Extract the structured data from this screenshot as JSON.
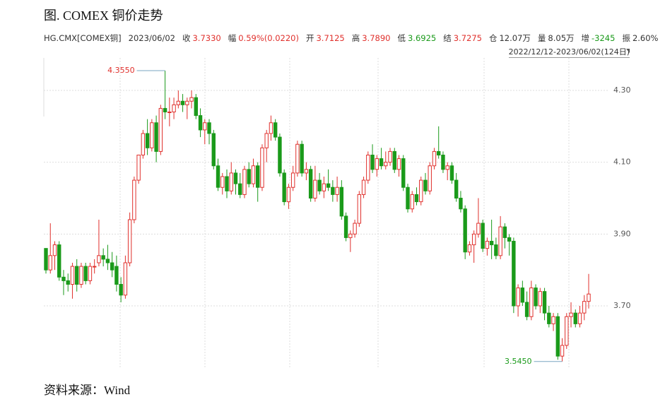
{
  "title": "图. COMEX 铜价走势",
  "source": "资料来源：Wind",
  "chart_data": {
    "type": "candlestick",
    "header": {
      "symbol": "HG.CMX[COMEX铜]",
      "date": "2023/06/02",
      "quote": [
        {
          "label": "收",
          "value": "3.7330",
          "color": "#e0302c"
        },
        {
          "label": "幅",
          "value": "0.59%(0.0220)",
          "color": "#e0302c"
        },
        {
          "label": "开",
          "value": "3.7125",
          "color": "#e0302c"
        },
        {
          "label": "高",
          "value": "3.7890",
          "color": "#e0302c"
        },
        {
          "label": "低",
          "value": "3.6925",
          "color": "#1a9a1a"
        },
        {
          "label": "结",
          "value": "3.7275",
          "color": "#e0302c"
        },
        {
          "label": "仓",
          "value": "12.07万",
          "color": "#333333"
        },
        {
          "label": "量",
          "value": "8.05万",
          "color": "#333333"
        },
        {
          "label": "增",
          "value": "-3245",
          "color": "#1a9a1a"
        },
        {
          "label": "振",
          "value": "2.60%",
          "color": "#333333"
        }
      ],
      "range": "2022/12/12-2023/06/02(124日)"
    },
    "up_color": "#e0302c",
    "down_color": "#1a9a1a",
    "ylim": [
      3.53,
      4.385
    ],
    "yticks": [
      {
        "value": 3.7,
        "label": "3.70"
      },
      {
        "value": 3.9,
        "label": "3.90"
      },
      {
        "value": 4.1,
        "label": "4.10"
      },
      {
        "value": 4.3,
        "label": "4.30"
      }
    ],
    "grid": true,
    "annotations": [
      {
        "text": "4.3550",
        "index": 27,
        "color": "#e0302c"
      },
      {
        "text": "3.5450",
        "index": 117,
        "color": "#1a9a1a"
      }
    ],
    "open": [
      3.86,
      3.8,
      3.84,
      3.87,
      3.78,
      3.77,
      3.76,
      3.81,
      3.76,
      3.81,
      3.77,
      3.81,
      3.82,
      3.84,
      3.83,
      3.82,
      3.81,
      3.76,
      3.73,
      3.82,
      3.94,
      4.05,
      4.12,
      4.18,
      4.14,
      4.21,
      4.13,
      4.25,
      4.24,
      4.24,
      4.26,
      4.27,
      4.26,
      4.27,
      4.28,
      4.23,
      4.19,
      4.21,
      4.18,
      4.09,
      4.03,
      4.06,
      4.02,
      4.07,
      4.04,
      4.01,
      4.08,
      4.04,
      4.09,
      4.03,
      4.14,
      4.18,
      4.21,
      4.17,
      4.07,
      3.99,
      4.03,
      4.07,
      4.15,
      4.07,
      4.08,
      4.0,
      4.05,
      4.02,
      4.04,
      4.03,
      4.01,
      4.03,
      3.95,
      3.89,
      3.9,
      3.93,
      4.01,
      4.05,
      4.12,
      4.08,
      4.11,
      4.09,
      4.1,
      4.13,
      4.08,
      4.11,
      4.03,
      3.97,
      4.01,
      3.99,
      4.05,
      4.02,
      4.09,
      4.13,
      4.12,
      4.08,
      4.09,
      4.05,
      4.0,
      3.97,
      3.85,
      3.87,
      3.9,
      3.93,
      3.86,
      3.88,
      3.87,
      3.84,
      3.92,
      3.89,
      3.88,
      3.7,
      3.75,
      3.71,
      3.67,
      3.75,
      3.7,
      3.74,
      3.68,
      3.65,
      3.67,
      3.56,
      3.59,
      3.67,
      3.68,
      3.65,
      3.68,
      3.7125
    ],
    "high": [
      3.86,
      3.93,
      3.88,
      3.88,
      3.8,
      3.79,
      3.82,
      3.83,
      3.82,
      3.82,
      3.82,
      3.83,
      3.94,
      3.86,
      3.87,
      3.85,
      3.84,
      3.78,
      3.84,
      3.96,
      4.06,
      4.12,
      4.19,
      4.22,
      4.22,
      4.23,
      4.26,
      4.355,
      4.28,
      4.28,
      4.3,
      4.29,
      4.28,
      4.3,
      4.29,
      4.25,
      4.22,
      4.22,
      4.19,
      4.11,
      4.07,
      4.08,
      4.1,
      4.08,
      4.07,
      4.09,
      4.1,
      4.11,
      4.1,
      4.15,
      4.19,
      4.23,
      4.22,
      4.18,
      4.08,
      4.04,
      4.09,
      4.16,
      4.16,
      4.1,
      4.09,
      4.09,
      4.07,
      4.06,
      4.08,
      4.05,
      4.06,
      4.05,
      3.96,
      3.91,
      3.94,
      4.02,
      4.06,
      4.13,
      4.15,
      4.12,
      4.14,
      4.13,
      4.14,
      4.14,
      4.12,
      4.12,
      4.04,
      4.02,
      4.03,
      4.06,
      4.07,
      4.1,
      4.14,
      4.2,
      4.13,
      4.1,
      4.1,
      4.07,
      4.02,
      3.98,
      3.88,
      3.91,
      4.0,
      3.94,
      3.89,
      3.94,
      3.89,
      3.95,
      3.93,
      3.9,
      3.89,
      3.76,
      3.77,
      3.74,
      3.77,
      3.76,
      3.75,
      3.75,
      3.7,
      3.68,
      3.68,
      3.61,
      3.68,
      3.71,
      3.69,
      3.7,
      3.73,
      3.789
    ],
    "low": [
      3.79,
      3.79,
      3.8,
      3.77,
      3.73,
      3.74,
      3.72,
      3.74,
      3.75,
      3.76,
      3.76,
      3.79,
      3.81,
      3.81,
      3.8,
      3.78,
      3.74,
      3.71,
      3.72,
      3.81,
      3.93,
      4.04,
      4.11,
      4.12,
      4.13,
      4.1,
      4.12,
      4.22,
      4.2,
      4.22,
      4.25,
      4.24,
      4.22,
      4.25,
      4.22,
      4.17,
      4.15,
      4.15,
      4.08,
      4.02,
      4.01,
      4.0,
      4.01,
      4.01,
      4.0,
      4.0,
      4.03,
      4.03,
      3.99,
      4.02,
      4.1,
      4.16,
      4.16,
      4.06,
      3.98,
      3.97,
      4.02,
      4.06,
      4.06,
      4.05,
      3.99,
      3.99,
      4.01,
      4.0,
      4.02,
      3.99,
      3.99,
      3.94,
      3.88,
      3.85,
      3.89,
      3.92,
      4.0,
      4.04,
      4.07,
      4.06,
      4.08,
      4.08,
      4.09,
      4.07,
      4.06,
      4.02,
      3.96,
      3.96,
      3.98,
      3.98,
      4.01,
      4.01,
      4.08,
      4.11,
      4.07,
      4.05,
      4.04,
      3.99,
      3.96,
      3.83,
      3.84,
      3.82,
      3.89,
      3.85,
      3.84,
      3.83,
      3.83,
      3.83,
      3.86,
      3.84,
      3.68,
      3.67,
      3.7,
      3.66,
      3.66,
      3.69,
      3.68,
      3.66,
      3.64,
      3.63,
      3.55,
      3.545,
      3.58,
      3.64,
      3.64,
      3.64,
      3.66,
      3.6925
    ],
    "close": [
      3.8,
      3.84,
      3.87,
      3.78,
      3.77,
      3.76,
      3.81,
      3.76,
      3.81,
      3.77,
      3.81,
      3.81,
      3.84,
      3.83,
      3.82,
      3.8,
      3.76,
      3.73,
      3.82,
      3.94,
      4.05,
      4.12,
      4.18,
      4.14,
      4.21,
      4.13,
      4.25,
      4.24,
      4.24,
      4.26,
      4.27,
      4.26,
      4.27,
      4.28,
      4.23,
      4.19,
      4.21,
      4.18,
      4.09,
      4.03,
      4.06,
      4.02,
      4.07,
      4.04,
      4.01,
      4.08,
      4.04,
      4.09,
      4.03,
      4.14,
      4.18,
      4.21,
      4.17,
      4.07,
      3.99,
      4.03,
      4.07,
      4.15,
      4.07,
      4.08,
      4.0,
      4.05,
      4.02,
      4.04,
      4.03,
      4.01,
      4.03,
      3.95,
      3.89,
      3.9,
      3.93,
      4.01,
      4.05,
      4.12,
      4.08,
      4.11,
      4.09,
      4.1,
      4.13,
      4.08,
      4.11,
      4.03,
      3.97,
      4.01,
      3.99,
      4.05,
      4.02,
      4.09,
      4.13,
      4.12,
      4.08,
      4.09,
      4.05,
      4.0,
      3.97,
      3.85,
      3.87,
      3.9,
      3.93,
      3.86,
      3.88,
      3.87,
      3.84,
      3.92,
      3.89,
      3.88,
      3.7,
      3.75,
      3.71,
      3.67,
      3.75,
      3.7,
      3.74,
      3.68,
      3.65,
      3.67,
      3.56,
      3.59,
      3.67,
      3.68,
      3.65,
      3.68,
      3.7125,
      3.733
    ]
  }
}
